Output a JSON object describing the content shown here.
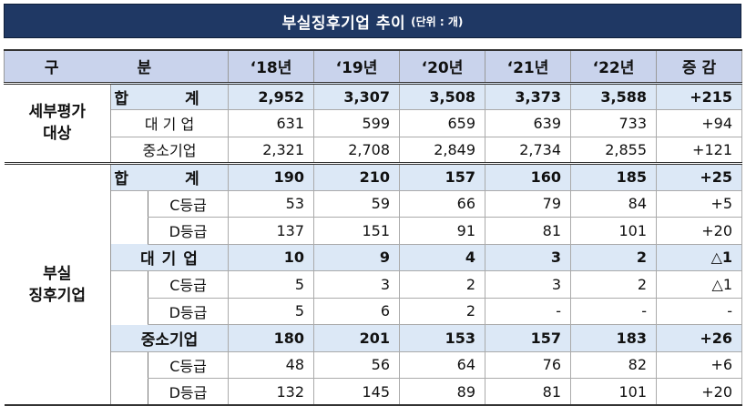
{
  "title": {
    "main": "부실징후기업 추이",
    "unit": "(단위 : 개)"
  },
  "header": {
    "category": "구 분",
    "years": [
      "‘18년",
      "‘19년",
      "‘20년",
      "‘21년",
      "‘22년"
    ],
    "change": "증 감"
  },
  "sections": {
    "eval": {
      "label_line1": "세부평가",
      "label_line2": "대상",
      "total": {
        "label": "합 계",
        "values": [
          "2,952",
          "3,307",
          "3,508",
          "3,373",
          "3,588"
        ],
        "change": "+215"
      },
      "large": {
        "label": "대 기 업",
        "values": [
          "631",
          "599",
          "659",
          "639",
          "733"
        ],
        "change": "+94"
      },
      "sme": {
        "label": "중소기업",
        "values": [
          "2,321",
          "2,708",
          "2,849",
          "2,734",
          "2,855"
        ],
        "change": "+121"
      }
    },
    "distress": {
      "label_line1": "부실",
      "label_line2": "징후기업",
      "total": {
        "label": "합 계",
        "values": [
          "190",
          "210",
          "157",
          "160",
          "185"
        ],
        "change": "+25",
        "c": {
          "label": "C등급",
          "values": [
            "53",
            "59",
            "66",
            "79",
            "84"
          ],
          "change": "+5"
        },
        "d": {
          "label": "D등급",
          "values": [
            "137",
            "151",
            "91",
            "81",
            "101"
          ],
          "change": "+20"
        }
      },
      "large": {
        "label": "대 기 업",
        "values": [
          "10",
          "9",
          "4",
          "3",
          "2"
        ],
        "change": "△1",
        "c": {
          "label": "C등급",
          "values": [
            "5",
            "3",
            "2",
            "3",
            "2"
          ],
          "change": "△1"
        },
        "d": {
          "label": "D등급",
          "values": [
            "5",
            "6",
            "2",
            "-",
            "-"
          ],
          "change": "-"
        }
      },
      "sme": {
        "label": "중소기업",
        "values": [
          "180",
          "201",
          "153",
          "157",
          "183"
        ],
        "change": "+26",
        "c": {
          "label": "C등급",
          "values": [
            "48",
            "56",
            "64",
            "76",
            "82"
          ],
          "change": "+6"
        },
        "d": {
          "label": "D등급",
          "values": [
            "132",
            "145",
            "89",
            "81",
            "101"
          ],
          "change": "+20"
        }
      }
    }
  }
}
